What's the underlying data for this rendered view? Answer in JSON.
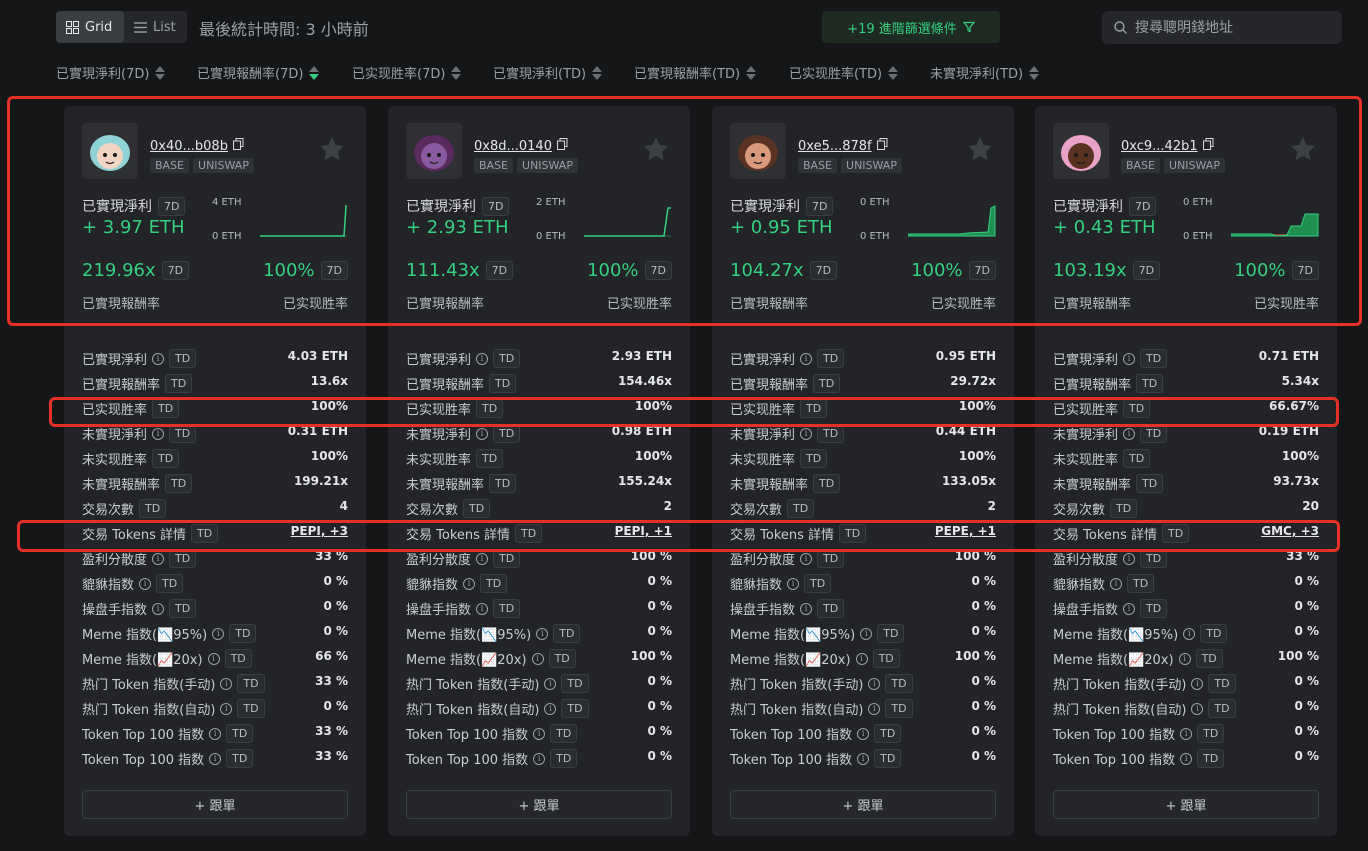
{
  "toolbar": {
    "grid_label": "Grid",
    "list_label": "List",
    "last_stat_time": "最後統計時間: 3 小時前",
    "advanced_filter_label": "+19 進階篩選條件",
    "search_placeholder": "搜尋聰明錢地址"
  },
  "sort_options": [
    {
      "label": "已實現淨利(7D)",
      "active": false
    },
    {
      "label": "已實現報酬率(7D)",
      "active": true
    },
    {
      "label": "已实现胜率(7D)",
      "active": false
    },
    {
      "label": "已實現淨利(TD)",
      "active": false
    },
    {
      "label": "已實現報酬率(TD)",
      "active": false
    },
    {
      "label": "已实现胜率(TD)",
      "active": false
    },
    {
      "label": "未實現淨利(TD)",
      "active": false
    }
  ],
  "colors": {
    "accent_green": "#35d07f",
    "highlight_red": "#e8302a",
    "card_bg": "#222427"
  },
  "labels": {
    "pnl": "已實現淨利",
    "roi": "已實現報酬率",
    "win": "已实现胜率",
    "badge_7d": "7D",
    "badge_td": "TD",
    "follow": "+ 跟單"
  },
  "stat_labels": [
    "已實現淨利",
    "已實現報酬率",
    "已实现胜率",
    "未實現淨利",
    "未实现胜率",
    "未實現報酬率",
    "交易次數",
    "交易 Tokens 詳情",
    "盈利分散度",
    "貔貅指数",
    "操盘手指数",
    "Meme 指数(📉95%)",
    "Meme 指数(📈20x)",
    "热门 Token 指数(手动)",
    "热门 Token 指数(自动)",
    "Token Top 100 指数",
    "Token Top 100 指数"
  ],
  "cards": [
    {
      "address": "0x40...b08b",
      "chain": "BASE",
      "dex": "UNISWAP",
      "pnl": "+ 3.97 ETH",
      "spark_top": "4 ETH",
      "spark_bottom": "0 ETH",
      "roi": "219.96x",
      "win_rate": "100%",
      "stats": [
        "4.03 ETH",
        "13.6x",
        "100%",
        "0.31 ETH",
        "100%",
        "199.21x",
        "4",
        "PEPI, +3",
        "33 %",
        "0 %",
        "0 %",
        "0 %",
        "66 %",
        "33 %",
        "0 %",
        "33 %",
        "33 %"
      ]
    },
    {
      "address": "0x8d...0140",
      "chain": "BASE",
      "dex": "UNISWAP",
      "pnl": "+ 2.93 ETH",
      "spark_top": "2 ETH",
      "spark_bottom": "0 ETH",
      "roi": "111.43x",
      "win_rate": "100%",
      "stats": [
        "2.93 ETH",
        "154.46x",
        "100%",
        "0.98 ETH",
        "100%",
        "155.24x",
        "2",
        "PEPI, +1",
        "100 %",
        "0 %",
        "0 %",
        "0 %",
        "100 %",
        "0 %",
        "0 %",
        "0 %",
        "0 %"
      ]
    },
    {
      "address": "0xe5...878f",
      "chain": "BASE",
      "dex": "UNISWAP",
      "pnl": "+ 0.95 ETH",
      "spark_top": "0 ETH",
      "spark_bottom": "0 ETH",
      "roi": "104.27x",
      "win_rate": "100%",
      "stats": [
        "0.95 ETH",
        "29.72x",
        "100%",
        "0.44 ETH",
        "100%",
        "133.05x",
        "2",
        "PEPE, +1",
        "100 %",
        "0 %",
        "0 %",
        "0 %",
        "100 %",
        "0 %",
        "0 %",
        "0 %",
        "0 %"
      ]
    },
    {
      "address": "0xc9...42b1",
      "chain": "BASE",
      "dex": "UNISWAP",
      "pnl": "+ 0.43 ETH",
      "spark_top": "0 ETH",
      "spark_bottom": "0 ETH",
      "roi": "103.19x",
      "win_rate": "100%",
      "stats": [
        "0.71 ETH",
        "5.34x",
        "66.67%",
        "0.19 ETH",
        "100%",
        "93.73x",
        "20",
        "GMC, +3",
        "33 %",
        "0 %",
        "0 %",
        "0 %",
        "100 %",
        "0 %",
        "0 %",
        "0 %",
        "0 %"
      ]
    }
  ]
}
